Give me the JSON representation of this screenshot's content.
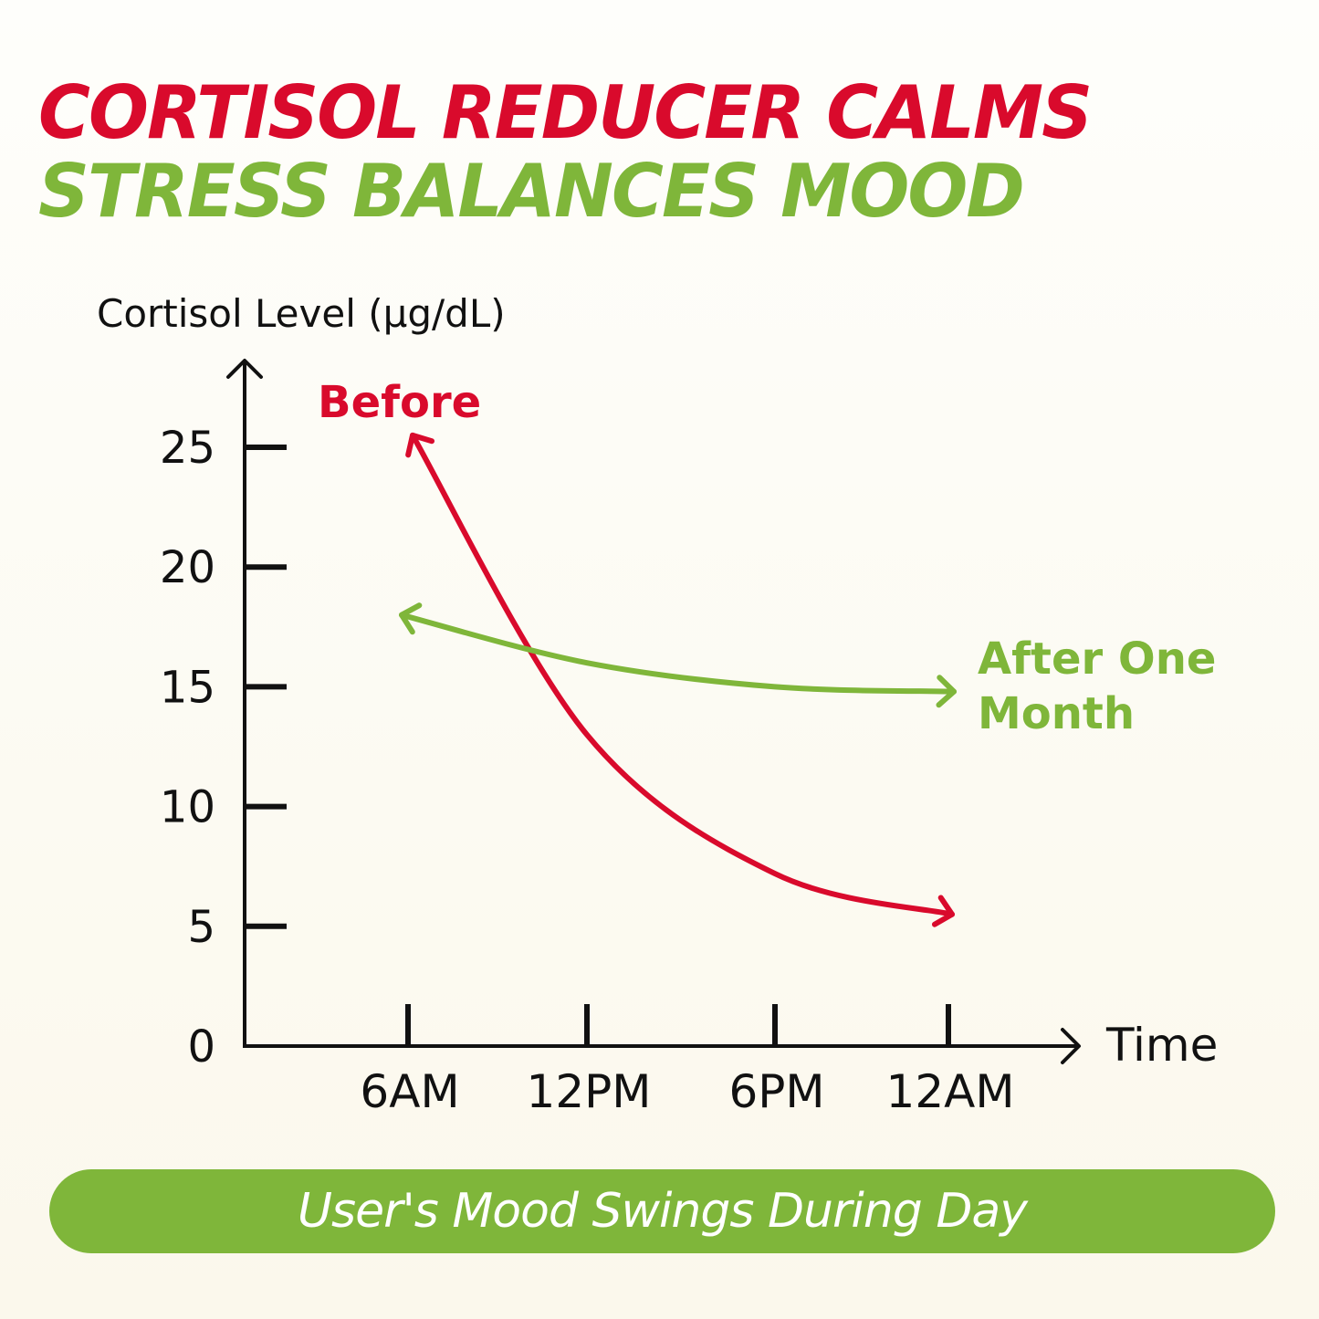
{
  "headline": {
    "line1": "CORTISOL REDUCER CALMS",
    "line2": "STRESS BALANCES MOOD"
  },
  "chart_data": {
    "type": "line",
    "ylabel": "Cortisol Level (μg/dL)",
    "xlabel": "Time",
    "y_ticks": [
      "0",
      "5",
      "10",
      "15",
      "20",
      "25"
    ],
    "x_ticks": [
      "6AM",
      "12PM",
      "6PM",
      "12AM"
    ],
    "ylim": [
      0,
      28
    ],
    "grid": false,
    "series": [
      {
        "name": "Before",
        "color": "#d90a2c",
        "x": [
          "6AM",
          "12PM",
          "6PM",
          "12AM"
        ],
        "y": [
          25.5,
          13,
          7.2,
          5.5
        ]
      },
      {
        "name_lines": [
          "After One",
          "Month"
        ],
        "color": "#7fb63a",
        "x": [
          "6AM",
          "12PM",
          "6PM",
          "12AM"
        ],
        "y": [
          18,
          16,
          15,
          14.8
        ]
      }
    ]
  },
  "footer": {
    "label": "User's Mood Swings During Day"
  },
  "colors": {
    "red": "#d90a2c",
    "green": "#7fb63a",
    "axis": "#111111"
  }
}
